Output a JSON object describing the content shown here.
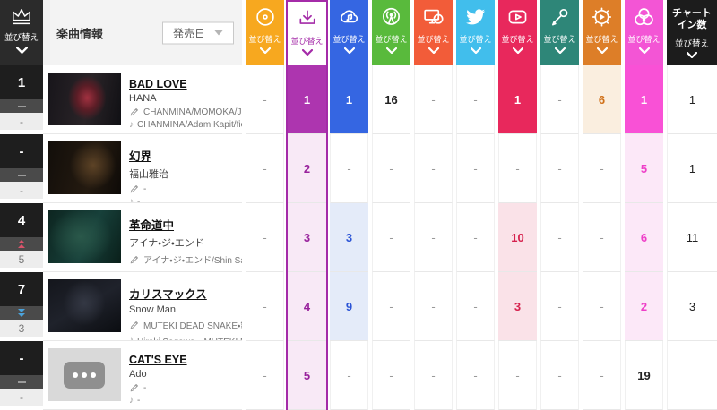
{
  "header": {
    "rank_sort": {
      "sort_label": "並び替え"
    },
    "song_info": {
      "label": "楽曲情報",
      "release_date_button": "発売日"
    },
    "sort_label": "並び替え",
    "metrics": [
      {
        "id": "cd",
        "icon": "cd-disc-icon",
        "color": "#F7A81F",
        "tint": "#FDF3DF",
        "text_color": "#E09010"
      },
      {
        "id": "download",
        "icon": "download-icon",
        "color": "#A42BA8",
        "solid": "#AD35AF",
        "tint": "#F8E9F6",
        "text_color": "#98219C",
        "selected": true
      },
      {
        "id": "streaming",
        "icon": "cloud-music-icon",
        "color": "#3566E2",
        "tint": "#E4EBF9",
        "text_color": "#2B54D6"
      },
      {
        "id": "radio",
        "icon": "radio-broadcast-icon",
        "color": "#59BA3C",
        "tint": "#E9F5E3",
        "text_color": "#4AA52E"
      },
      {
        "id": "video-lookup",
        "icon": "monitor-disc-icon",
        "color": "#F25C39",
        "tint": "#FDE9E4",
        "text_color": "#E04A28"
      },
      {
        "id": "twitter",
        "icon": "twitter-bird-icon",
        "color": "#41BEEC",
        "tint": "#E5F6FC",
        "text_color": "#2FA8DA"
      },
      {
        "id": "youtube",
        "icon": "youtube-play-icon",
        "color": "#E8285C",
        "tint": "#FAE2E8",
        "text_color": "#D6224E"
      },
      {
        "id": "karaoke",
        "icon": "microphone-icon",
        "color": "#2E8678",
        "tint": "#E2F0ED",
        "text_color": "#27776A"
      },
      {
        "id": "gear",
        "icon": "gear-play-icon",
        "color": "#DD7E28",
        "tint": "#FAEEDF",
        "text_color": "#D07018"
      },
      {
        "id": "venn",
        "icon": "venn-circles-icon",
        "color": "#F355D5",
        "solid": "#F951D6",
        "tint": "#FCE8F8",
        "text_color": "#EE3FC8"
      }
    ],
    "chart_in": {
      "label_line1": "チャート",
      "label_line2": "イン数",
      "sort_label": "並び替え",
      "color": "#1C1C1C"
    }
  },
  "rows": [
    {
      "rank": "1",
      "movement": "flat",
      "prev_rank": "-",
      "title": "BAD LOVE",
      "artist": "HANA",
      "lyricist": "CHANMINA/MOMOKA/JISOO",
      "composer": "CHANMINA/Adam Kapit/ficti...",
      "thumb": "dark-red-hair",
      "cells": {
        "cd": "-",
        "download": "1",
        "streaming": "1",
        "radio": "16",
        "video-lookup": "-",
        "twitter": "-",
        "youtube": "1",
        "karaoke": "-",
        "gear": "6",
        "venn": "1"
      },
      "chart_in": "1"
    },
    {
      "rank": "-",
      "movement": "flat",
      "prev_rank": "-",
      "title": "幻界",
      "artist": "福山雅治",
      "lyricist": "-",
      "composer": "-",
      "thumb": "dark-warm",
      "cells": {
        "cd": "-",
        "download": "2",
        "streaming": "-",
        "radio": "-",
        "video-lookup": "-",
        "twitter": "-",
        "youtube": "-",
        "karaoke": "-",
        "gear": "-",
        "venn": "5"
      },
      "chart_in": "1"
    },
    {
      "rank": "4",
      "movement": "up",
      "prev_rank": "5",
      "title": "革命道中",
      "artist": "アイナ・ジ・エンド",
      "lyricist": "アイナ・ジ・エンド/Shin Sa...",
      "composer": "アイナ・ジ・エンド/Shin Sa...",
      "thumb": "dark-teal",
      "cells": {
        "cd": "-",
        "download": "3",
        "streaming": "3",
        "radio": "-",
        "video-lookup": "-",
        "twitter": "-",
        "youtube": "10",
        "karaoke": "-",
        "gear": "-",
        "venn": "6"
      },
      "chart_in": "11"
    },
    {
      "rank": "7",
      "movement": "down",
      "prev_rank": "3",
      "title": "カリスマックス",
      "artist": "Snow Man",
      "lyricist": "MUTEKI DEAD SNAKE・鈴...",
      "composer": "Hiroki Sagawa・MUTEKI D...",
      "thumb": "dark-cool",
      "cells": {
        "cd": "-",
        "download": "4",
        "streaming": "9",
        "radio": "-",
        "video-lookup": "-",
        "twitter": "-",
        "youtube": "3",
        "karaoke": "-",
        "gear": "-",
        "venn": "2"
      },
      "chart_in": "3"
    },
    {
      "rank": "-",
      "movement": "flat",
      "prev_rank": "-",
      "title": "CAT'S EYE",
      "artist": "Ado",
      "lyricist": "-",
      "composer": "-",
      "thumb": "placeholder",
      "cells": {
        "cd": "-",
        "download": "5",
        "streaming": "-",
        "radio": "-",
        "video-lookup": "-",
        "twitter": "-",
        "youtube": "-",
        "karaoke": "-",
        "gear": "-",
        "venn": "19"
      },
      "chart_in": ""
    }
  ]
}
